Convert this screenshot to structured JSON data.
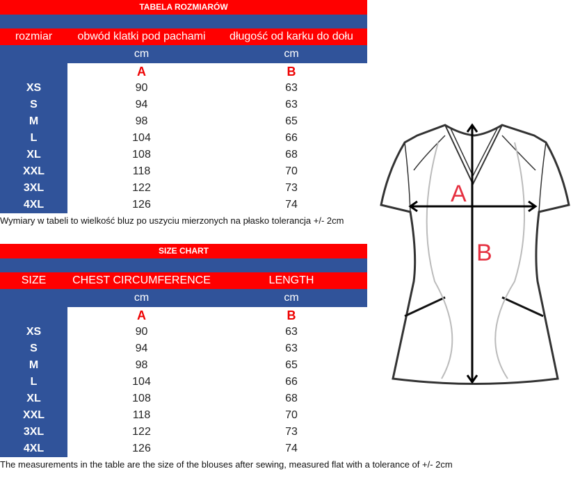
{
  "tables": [
    {
      "title": "TABELA ROZMIARÓW",
      "headers": [
        "rozmiar",
        "obwód klatki pod pachami",
        "długość od karku do dołu"
      ],
      "units": [
        "",
        "cm",
        "cm"
      ],
      "letters": [
        "",
        "A",
        "B"
      ],
      "rows": [
        [
          "XS",
          "90",
          "63"
        ],
        [
          "S",
          "94",
          "63"
        ],
        [
          "M",
          "98",
          "65"
        ],
        [
          "L",
          "104",
          "66"
        ],
        [
          "XL",
          "108",
          "68"
        ],
        [
          "XXL",
          "118",
          "70"
        ],
        [
          "3XL",
          "122",
          "73"
        ],
        [
          "4XL",
          "126",
          "74"
        ]
      ],
      "caption": "Wymiary w tabeli to wielkość bluz po uszyciu mierzonych na płasko tolerancja +/- 2cm"
    },
    {
      "title": "SIZE CHART",
      "headers": [
        "SIZE",
        "CHEST CIRCUMFERENCE",
        "LENGTH"
      ],
      "units": [
        "",
        "cm",
        "cm"
      ],
      "letters": [
        "",
        "A",
        "B"
      ],
      "rows": [
        [
          "XS",
          "90",
          "63"
        ],
        [
          "S",
          "94",
          "63"
        ],
        [
          "M",
          "98",
          "65"
        ],
        [
          "L",
          "104",
          "66"
        ],
        [
          "XL",
          "108",
          "68"
        ],
        [
          "XXL",
          "118",
          "70"
        ],
        [
          "3XL",
          "122",
          "73"
        ],
        [
          "4XL",
          "126",
          "74"
        ]
      ],
      "caption": "The measurements in the table are the size of the blouses after sewing, measured flat with a tolerance of +/- 2cm"
    }
  ],
  "diagram": {
    "label_a": "A",
    "label_b": "B"
  },
  "colors": {
    "red": "#ff0000",
    "blue": "#30539a",
    "letter": "#e00000"
  }
}
